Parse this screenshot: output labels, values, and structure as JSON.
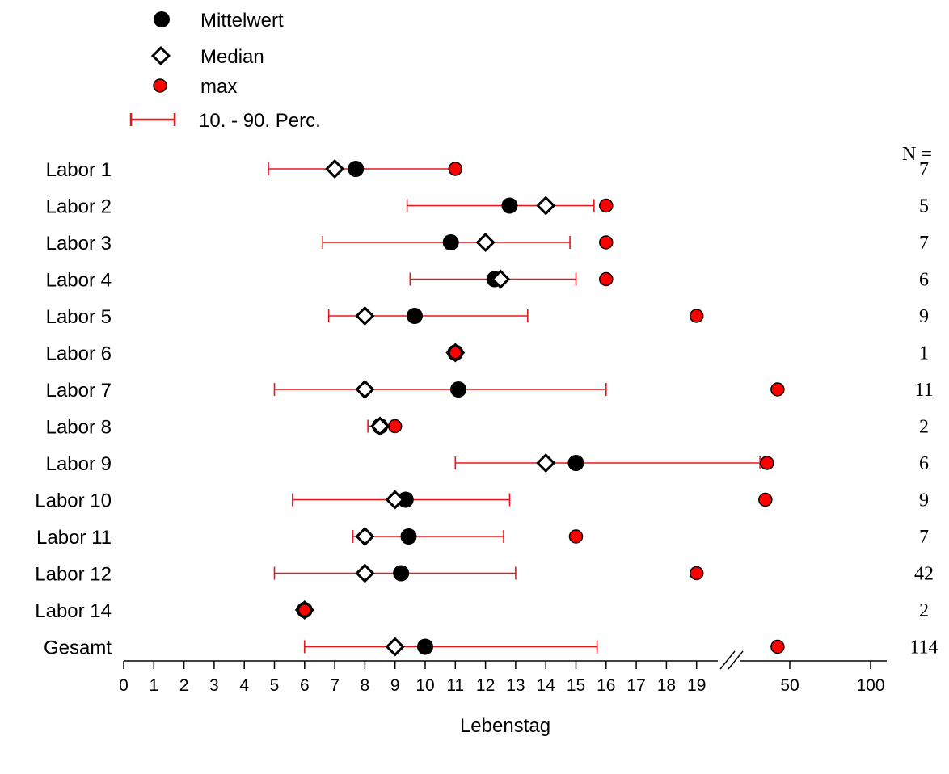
{
  "chart_data": {
    "type": "scatter",
    "xlabel": "Lebenstag",
    "n_header": "N =",
    "x_ticks": [
      "0",
      "1",
      "2",
      "3",
      "4",
      "5",
      "6",
      "7",
      "8",
      "9",
      "10",
      "11",
      "12",
      "13",
      "14",
      "15",
      "16",
      "17",
      "18",
      "19",
      "50",
      "100"
    ],
    "legend": [
      {
        "key": "mean",
        "label": "Mittelwert"
      },
      {
        "key": "median",
        "label": "Median"
      },
      {
        "key": "max",
        "label": "max"
      },
      {
        "key": "percentile",
        "label": "10. - 90. Perc."
      }
    ],
    "legend_position": "top-left",
    "colors": {
      "mean": "#000000",
      "median_fill": "#ffffff",
      "max": "#ff0000",
      "percentile": "#e8161b"
    },
    "rows": [
      {
        "label": "Labor 1",
        "n": "7",
        "p10": 4.8,
        "p90": 11.0,
        "mean": 7.7,
        "median": 7.0,
        "max": 11
      },
      {
        "label": "Labor 2",
        "n": "5",
        "p10": 9.4,
        "p90": 15.6,
        "mean": 12.8,
        "median": 14.0,
        "max": 16
      },
      {
        "label": "Labor 3",
        "n": "7",
        "p10": 6.6,
        "p90": 14.8,
        "mean": 10.85,
        "median": 12.0,
        "max": 16
      },
      {
        "label": "Labor 4",
        "n": "6",
        "p10": 9.5,
        "p90": 15.0,
        "mean": 12.3,
        "median": 12.5,
        "max": 16
      },
      {
        "label": "Labor 5",
        "n": "9",
        "p10": 6.8,
        "p90": 13.4,
        "mean": 9.65,
        "median": 8.0,
        "max": 19
      },
      {
        "label": "Labor 6",
        "n": "1",
        "p10": null,
        "p90": null,
        "mean": 11.0,
        "median": 11.0,
        "max": 11
      },
      {
        "label": "Labor 7",
        "n": "11",
        "p10": 5.0,
        "p90": 16.0,
        "mean": 11.1,
        "median": 8.0,
        "max": 40
      },
      {
        "label": "Labor 8",
        "n": "2",
        "p10": 8.1,
        "p90": 8.9,
        "mean": 8.5,
        "median": 8.5,
        "max": 9
      },
      {
        "label": "Labor 9",
        "n": "6",
        "p10": 11.0,
        "p90": 29,
        "mean": 15.0,
        "median": 14.0,
        "max": 33
      },
      {
        "label": "Labor 10",
        "n": "9",
        "p10": 5.6,
        "p90": 12.8,
        "mean": 9.35,
        "median": 9.0,
        "max": 32
      },
      {
        "label": "Labor 11",
        "n": "7",
        "p10": 7.6,
        "p90": 12.6,
        "mean": 9.45,
        "median": 8.0,
        "max": 15
      },
      {
        "label": "Labor 12",
        "n": "42",
        "p10": 5.0,
        "p90": 13.0,
        "mean": 9.2,
        "median": 8.0,
        "max": 19
      },
      {
        "label": "Labor 14",
        "n": "2",
        "p10": null,
        "p90": null,
        "mean": 6.0,
        "median": 6.0,
        "max": 6
      },
      {
        "label": "Gesamt",
        "n": "114",
        "p10": 6.0,
        "p90": 15.7,
        "mean": 10.0,
        "median": 9.0,
        "max": 40
      }
    ]
  }
}
